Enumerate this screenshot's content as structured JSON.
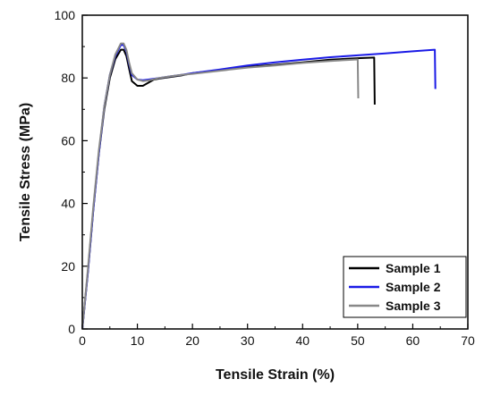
{
  "chart_data": {
    "type": "line",
    "title": "",
    "xlabel": "Tensile Strain (%)",
    "ylabel": "Tensile Stress (MPa)",
    "xlim": [
      0,
      70
    ],
    "ylim": [
      0,
      100
    ],
    "xticks": [
      "0",
      "10",
      "20",
      "30",
      "40",
      "50",
      "60",
      "70"
    ],
    "yticks": [
      "0",
      "20",
      "40",
      "60",
      "80",
      "100"
    ],
    "grid": false,
    "legend_position": "bottom-right",
    "series": [
      {
        "name": "Sample 1",
        "color": "#000000",
        "points": [
          [
            0,
            0
          ],
          [
            1,
            18
          ],
          [
            2,
            38
          ],
          [
            3,
            56
          ],
          [
            4,
            70
          ],
          [
            5,
            80
          ],
          [
            6,
            86
          ],
          [
            7,
            89
          ],
          [
            7.5,
            89
          ],
          [
            8,
            87
          ],
          [
            8.5,
            83
          ],
          [
            9,
            79
          ],
          [
            10,
            77.5
          ],
          [
            11,
            77.5
          ],
          [
            12,
            78.5
          ],
          [
            13,
            79.5
          ],
          [
            14,
            79.8
          ],
          [
            16,
            80.3
          ],
          [
            18,
            80.8
          ],
          [
            20,
            81.5
          ],
          [
            25,
            82.5
          ],
          [
            30,
            83.5
          ],
          [
            35,
            84.2
          ],
          [
            40,
            85
          ],
          [
            45,
            85.8
          ],
          [
            50,
            86.3
          ],
          [
            53,
            86.5
          ],
          [
            53.1,
            71.5
          ]
        ]
      },
      {
        "name": "Sample 2",
        "color": "#1a1ae6",
        "points": [
          [
            0,
            0
          ],
          [
            1,
            18
          ],
          [
            2,
            38
          ],
          [
            3,
            56
          ],
          [
            4,
            71
          ],
          [
            5,
            81
          ],
          [
            6,
            87
          ],
          [
            7,
            90.5
          ],
          [
            7.5,
            90.5
          ],
          [
            8,
            88.5
          ],
          [
            8.5,
            84.5
          ],
          [
            9,
            81
          ],
          [
            10,
            79.5
          ],
          [
            11,
            79.3
          ],
          [
            12,
            79.5
          ],
          [
            14,
            80
          ],
          [
            16,
            80.5
          ],
          [
            18,
            81
          ],
          [
            20,
            81.5
          ],
          [
            25,
            82.7
          ],
          [
            30,
            84
          ],
          [
            35,
            85
          ],
          [
            40,
            85.8
          ],
          [
            45,
            86.6
          ],
          [
            50,
            87.2
          ],
          [
            55,
            87.8
          ],
          [
            60,
            88.5
          ],
          [
            64,
            89
          ],
          [
            64.1,
            76.5
          ]
        ]
      },
      {
        "name": "Sample 3",
        "color": "#888888",
        "points": [
          [
            0,
            0
          ],
          [
            1,
            19
          ],
          [
            2,
            39
          ],
          [
            3,
            57
          ],
          [
            4,
            71
          ],
          [
            5,
            81
          ],
          [
            6,
            87.5
          ],
          [
            7,
            91
          ],
          [
            7.5,
            91
          ],
          [
            8,
            89
          ],
          [
            8.5,
            85
          ],
          [
            9,
            81.5
          ],
          [
            10,
            79.5
          ],
          [
            11,
            79
          ],
          [
            12,
            79.2
          ],
          [
            14,
            80
          ],
          [
            16,
            80.5
          ],
          [
            18,
            81
          ],
          [
            20,
            81.3
          ],
          [
            25,
            82.3
          ],
          [
            30,
            83.3
          ],
          [
            35,
            84
          ],
          [
            40,
            84.8
          ],
          [
            45,
            85.4
          ],
          [
            50,
            85.9
          ],
          [
            50.1,
            73.5
          ]
        ]
      }
    ]
  }
}
